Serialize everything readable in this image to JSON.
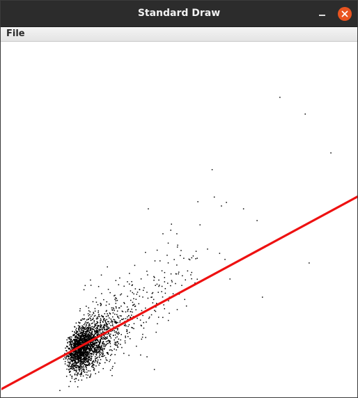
{
  "window": {
    "title": "Standard Draw",
    "close_button_color": "#e95420",
    "icons": {
      "minimize": "minimize-icon",
      "close": "close-icon"
    }
  },
  "menu": {
    "items": [
      {
        "label": "File"
      }
    ]
  },
  "canvas": {
    "point_color": "#000000",
    "line_color": "#ee1111",
    "regression_line": {
      "from": [
        0,
        0.025
      ],
      "to": [
        1,
        0.566
      ]
    },
    "scatter_seed": 7,
    "scatter_cluster_count": 2200,
    "outliers": [
      [
        0.781,
        0.844
      ],
      [
        0.852,
        0.797
      ],
      [
        0.924,
        0.688
      ],
      [
        0.591,
        0.641
      ],
      [
        0.412,
        0.531
      ],
      [
        0.551,
        0.551
      ],
      [
        0.597,
        0.564
      ],
      [
        0.617,
        0.539
      ],
      [
        0.631,
        0.549
      ],
      [
        0.679,
        0.531
      ],
      [
        0.717,
        0.498
      ],
      [
        0.477,
        0.488
      ],
      [
        0.557,
        0.486
      ],
      [
        0.475,
        0.471
      ],
      [
        0.453,
        0.461
      ],
      [
        0.492,
        0.461
      ],
      [
        0.578,
        0.418
      ],
      [
        0.612,
        0.406
      ],
      [
        0.627,
        0.389
      ],
      [
        0.863,
        0.379
      ],
      [
        0.641,
        0.334
      ],
      [
        0.732,
        0.283
      ],
      [
        0.429,
        0.08
      ],
      [
        0.164,
        0.021
      ]
    ]
  }
}
